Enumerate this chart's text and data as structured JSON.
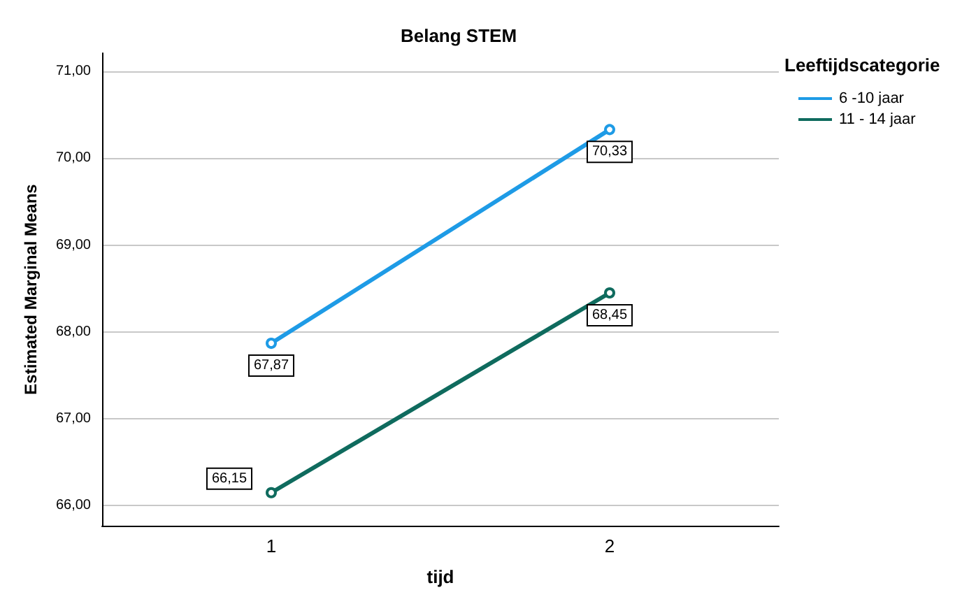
{
  "chart_data": {
    "type": "line",
    "title": "Belang STEM",
    "xlabel": "tijd",
    "ylabel": "Estimated Marginal Means",
    "legend_title": "Leeftijdscategorie",
    "categories": [
      "1",
      "2"
    ],
    "series": [
      {
        "name": "6 -10 jaar",
        "color": "#1e9be6",
        "values": [
          67.87,
          70.33
        ],
        "value_labels": [
          "67,87",
          "70,33"
        ]
      },
      {
        "name": "11 - 14 jaar",
        "color": "#0f6b5e",
        "values": [
          66.15,
          68.45
        ],
        "value_labels": [
          "66,15",
          "68,45"
        ]
      }
    ],
    "ylim": [
      65.77,
      71.21
    ],
    "yticks": [
      {
        "value": 66,
        "label": "66,00"
      },
      {
        "value": 67,
        "label": "67,00"
      },
      {
        "value": 68,
        "label": "68,00"
      },
      {
        "value": 69,
        "label": "69,00"
      },
      {
        "value": 70,
        "label": "70,00"
      },
      {
        "value": 71,
        "label": "71,00"
      }
    ],
    "grid": "y",
    "legend": "top right",
    "marker": "circle",
    "line_style": "solid"
  }
}
